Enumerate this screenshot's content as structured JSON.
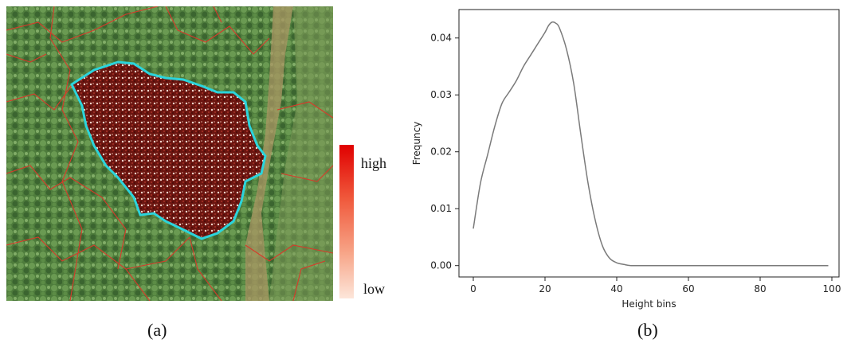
{
  "panel_a": {
    "caption": "(a)",
    "colorbar": {
      "high_label": "high",
      "low_label": "low",
      "high_color": "#e00000",
      "low_color": "#fde6da"
    },
    "colors": {
      "outline": "#2bd4dc",
      "boundaries": "#d83a2a",
      "canopy": "#4d7a3a",
      "region": "#7a1a12"
    }
  },
  "panel_b": {
    "caption": "(b)",
    "line_color": "#7a7a7a"
  },
  "chart_data": {
    "type": "line",
    "title": "",
    "xlabel": "Height bins",
    "ylabel": "Frequncy",
    "xlim": [
      -4,
      102
    ],
    "ylim": [
      -0.002,
      0.045
    ],
    "xticks": [
      0,
      20,
      40,
      60,
      80,
      100
    ],
    "yticks": [
      0.0,
      0.01,
      0.02,
      0.03,
      0.04
    ],
    "xtick_labels": [
      "0",
      "20",
      "40",
      "60",
      "80",
      "100"
    ],
    "ytick_labels": [
      "0.00",
      "0.01",
      "0.02",
      "0.03",
      "0.04"
    ],
    "grid": false,
    "series": [
      {
        "x": [
          0,
          2,
          4,
          6,
          8,
          10,
          12,
          14,
          16,
          18,
          20,
          21,
          22,
          23,
          24,
          26,
          28,
          30,
          32,
          34,
          36,
          38,
          40,
          42,
          44,
          48,
          60,
          80,
          99
        ],
        "y": [
          0.0065,
          0.0145,
          0.0195,
          0.0245,
          0.0285,
          0.0305,
          0.0325,
          0.035,
          0.037,
          0.039,
          0.041,
          0.0422,
          0.0428,
          0.0426,
          0.0418,
          0.038,
          0.032,
          0.023,
          0.0145,
          0.008,
          0.0035,
          0.0013,
          0.0005,
          0.0002,
          0.0,
          0.0,
          0.0,
          0.0,
          0.0
        ]
      }
    ]
  }
}
